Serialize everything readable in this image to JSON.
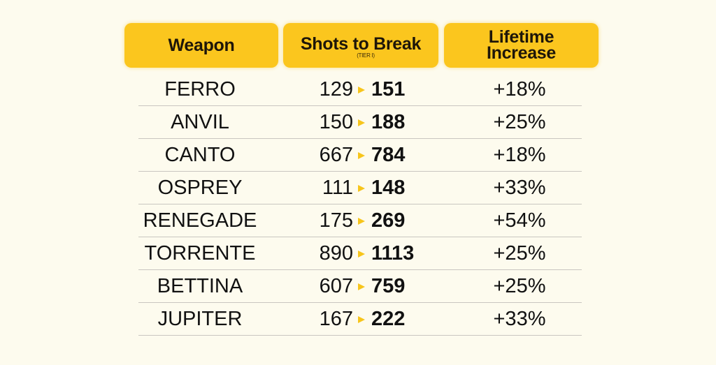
{
  "headers": {
    "weapon": "Weapon",
    "shots": "Shots to Break",
    "shots_sub": "(TIER I)",
    "lifetime_line1": "Lifetime",
    "lifetime_line2": "Increase"
  },
  "colors": {
    "header_bg": "#fbc61e",
    "arrow": "#f7c51b",
    "background": "#fdfbee"
  },
  "rows": [
    {
      "weapon": "FERRO",
      "old": "129",
      "new": "151",
      "increase": "+18%"
    },
    {
      "weapon": "ANVIL",
      "old": "150",
      "new": "188",
      "increase": "+25%"
    },
    {
      "weapon": "CANTO",
      "old": "667",
      "new": "784",
      "increase": "+18%"
    },
    {
      "weapon": "OSPREY",
      "old": "111",
      "new": "148",
      "increase": "+33%"
    },
    {
      "weapon": "RENEGADE",
      "old": "175",
      "new": "269",
      "increase": "+54%"
    },
    {
      "weapon": "TORRENTE",
      "old": "890",
      "new": "1113",
      "increase": "+25%"
    },
    {
      "weapon": "BETTINA",
      "old": "607",
      "new": "759",
      "increase": "+25%"
    },
    {
      "weapon": "JUPITER",
      "old": "167",
      "new": "222",
      "increase": "+33%"
    }
  ]
}
